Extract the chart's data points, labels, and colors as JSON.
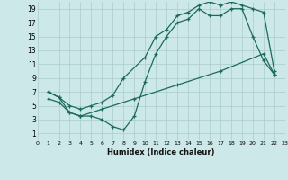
{
  "xlabel": "Humidex (Indice chaleur)",
  "bg_color": "#cce8e8",
  "line_color": "#1a6b5a",
  "grid_color": "#aacccc",
  "xlim": [
    0,
    23
  ],
  "ylim": [
    0,
    20
  ],
  "xticks": [
    0,
    1,
    2,
    3,
    4,
    5,
    6,
    7,
    8,
    9,
    10,
    11,
    12,
    13,
    14,
    15,
    16,
    17,
    18,
    19,
    20,
    21,
    22,
    23
  ],
  "yticks": [
    1,
    3,
    5,
    7,
    9,
    11,
    13,
    15,
    17,
    19
  ],
  "line1_x": [
    1,
    2,
    3,
    4,
    5,
    6,
    7,
    8,
    10,
    11,
    12,
    13,
    14,
    15,
    16,
    17,
    18,
    19,
    20,
    21,
    22
  ],
  "line1_y": [
    7,
    6.2,
    5,
    4.5,
    5,
    5.5,
    6.5,
    9,
    12,
    15,
    16,
    18,
    18.5,
    19.5,
    20,
    19.5,
    20,
    19.5,
    19,
    18.5,
    10
  ],
  "line2_x": [
    1,
    2,
    3,
    4,
    5,
    6,
    7,
    8,
    9,
    10,
    11,
    12,
    13,
    14,
    15,
    16,
    17,
    18,
    19,
    20,
    21,
    22
  ],
  "line2_y": [
    7,
    6.2,
    4,
    3.5,
    3.5,
    3,
    2,
    1.5,
    3.5,
    8.5,
    12.5,
    15,
    17,
    17.5,
    19,
    18,
    18,
    19,
    19,
    15,
    11.5,
    9.5
  ],
  "line3_x": [
    1,
    2,
    3,
    4,
    6,
    9,
    13,
    17,
    21,
    22
  ],
  "line3_y": [
    6,
    5.5,
    4,
    3.5,
    4.5,
    6,
    8,
    10,
    12.5,
    9.5
  ]
}
